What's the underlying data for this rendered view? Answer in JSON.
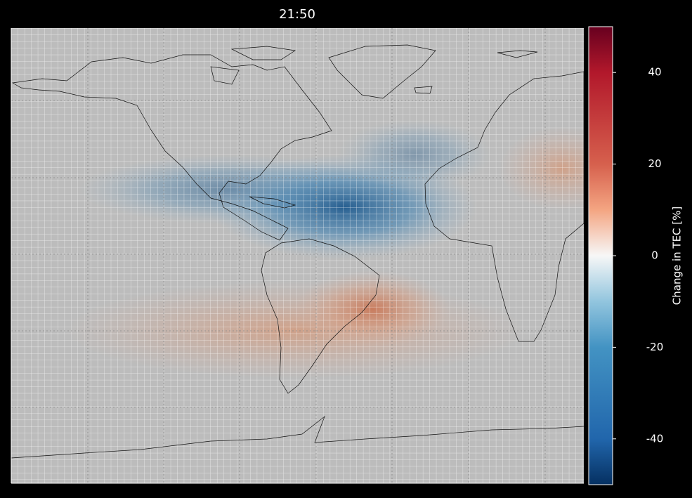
{
  "chart_data": {
    "type": "map",
    "title": "21:50",
    "colorbar": {
      "label": "Change in TEC [%]",
      "lim": [
        -50,
        50
      ],
      "ticks": [
        -40,
        -20,
        0,
        20,
        40
      ]
    }
  }
}
